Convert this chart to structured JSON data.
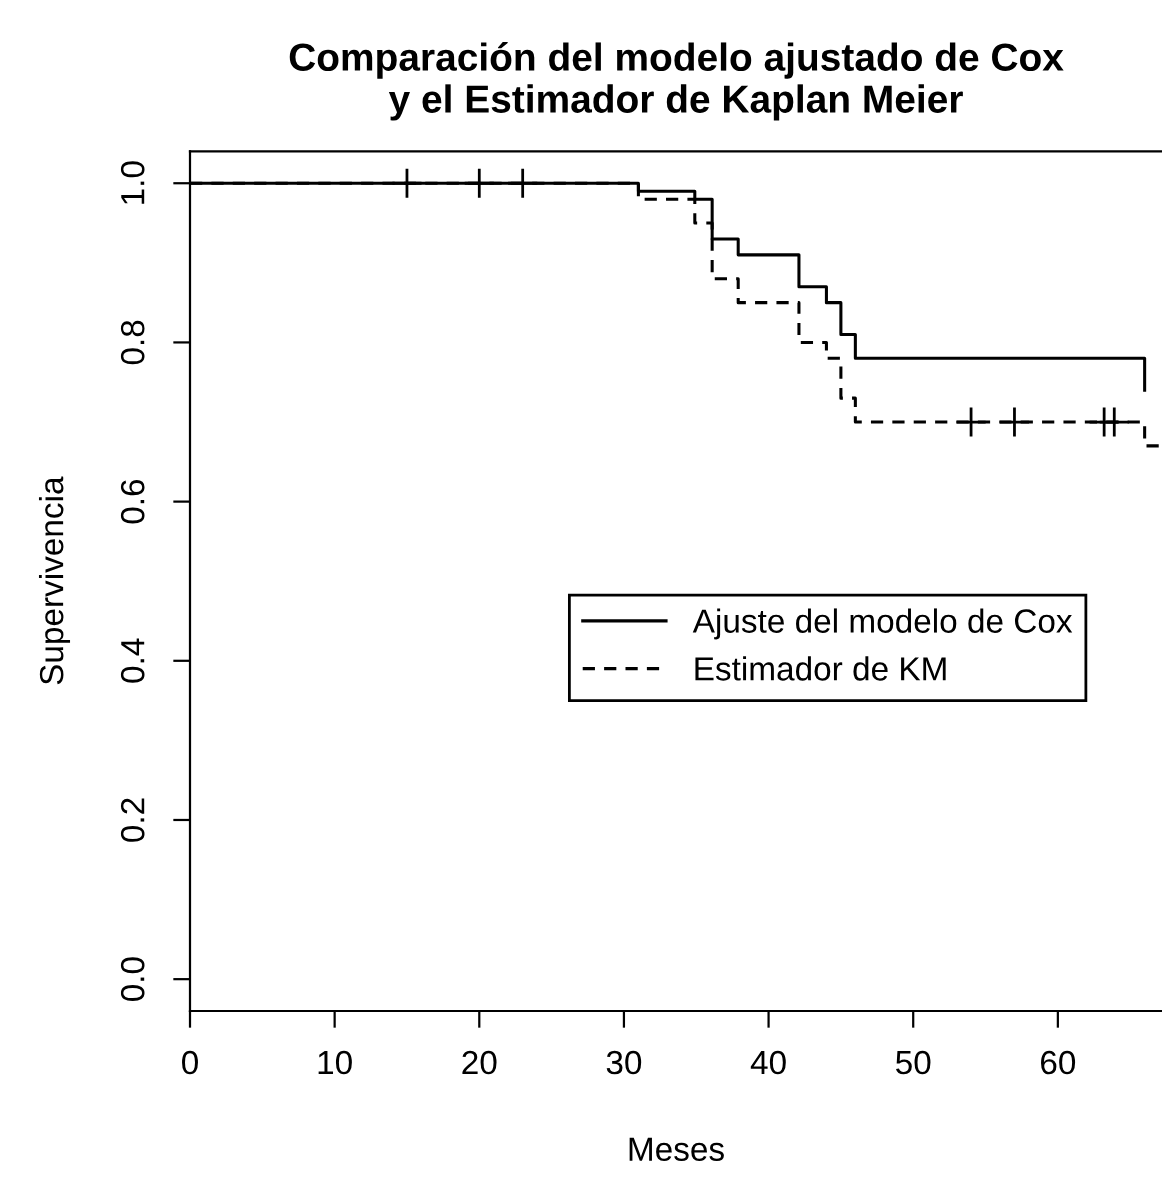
{
  "chart_data": {
    "type": "step",
    "title": "Comparación del modelo ajustado de Cox\ny el Estimador de Kaplan Meier",
    "xlabel": "Meses",
    "ylabel": "Supervivencia",
    "series": [
      {
        "name": "Ajuste del modelo de Cox",
        "color": "#000000",
        "line_style": "solid",
        "x": [
          0,
          31,
          34.9,
          36.1,
          37.9,
          42.1,
          44,
          45,
          46,
          66
        ],
        "values": [
          1,
          0.99,
          0.98,
          0.93,
          0.91,
          0.87,
          0.85,
          0.81,
          0.78,
          0.74
        ]
      },
      {
        "name": "Estimador de KM",
        "color": "#000000",
        "line_style": "dashed",
        "x": [
          0,
          31,
          34.9,
          36.1,
          37.9,
          42.1,
          44,
          45,
          46,
          66,
          67.2
        ],
        "values": [
          1,
          0.98,
          0.95,
          0.88,
          0.85,
          0.8,
          0.78,
          0.73,
          0.7,
          0.67,
          0.67
        ]
      },
      {
        "type": "scatter",
        "marker": "cross",
        "color": "#000000",
        "x": [
          15,
          20,
          23,
          54,
          57,
          63.2,
          63.9
        ],
        "values": [
          1,
          1,
          1,
          0.7,
          0.7,
          0.7,
          0.7
        ]
      }
    ],
    "xlim": [
      0,
      67.2
    ],
    "xticks": [
      0,
      10,
      20,
      30,
      40,
      50,
      60
    ],
    "ylim": [
      -0.04,
      1.04
    ],
    "yticks": [
      {
        "value": 0,
        "label": "0.0"
      },
      0.2,
      0.4,
      0.6,
      0.8,
      {
        "value": 1,
        "label": "1.0"
      }
    ],
    "legend": "right",
    "grid": false
  }
}
